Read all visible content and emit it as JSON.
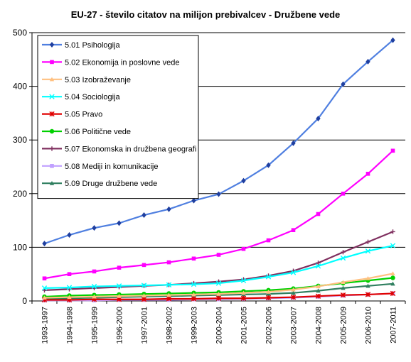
{
  "chart_data": {
    "type": "line",
    "title": "EU-27 - število citatov na milijon prebivalcev - Družbene vede",
    "xlabel": "",
    "ylabel": "",
    "ylim": [
      0,
      500
    ],
    "yticks": [
      0,
      100,
      200,
      300,
      400,
      500
    ],
    "grid": true,
    "legend_position": "top-left",
    "categories": [
      "1993-1997",
      "1994-1998",
      "1995-1999",
      "1996-2000",
      "1997-2001",
      "1998-2002",
      "1999-2003",
      "2000-2004",
      "2001-2005",
      "2002-2006",
      "2003-2007",
      "2004-2008",
      "2005-2009",
      "2006-2010",
      "2007-2011"
    ],
    "series": [
      {
        "name": "5.01 Psihologija",
        "color": "#1F3F9F",
        "line_color": "#4F7FE0",
        "marker": "diamond",
        "values": [
          107,
          123,
          136,
          145,
          160,
          171,
          187,
          199,
          224,
          253,
          294,
          340,
          404,
          446,
          486
        ]
      },
      {
        "name": "5.02 Ekonomija in poslovne vede",
        "color": "#FF00FF",
        "line_color": "#FF00FF",
        "marker": "square",
        "values": [
          42,
          50,
          55,
          62,
          67,
          72,
          79,
          86,
          97,
          113,
          132,
          162,
          200,
          237,
          280
        ]
      },
      {
        "name": "5.03 Izobraževanje",
        "color": "#FFC080",
        "line_color": "#FFC080",
        "marker": "triangle",
        "values": [
          6,
          7,
          8,
          9,
          10,
          11,
          12,
          13,
          15,
          17,
          21,
          27,
          35,
          42,
          51
        ]
      },
      {
        "name": "5.04 Sociologija",
        "color": "#00FFFF",
        "line_color": "#00FFFF",
        "marker": "x",
        "values": [
          24,
          25,
          27,
          28,
          29,
          30,
          31,
          33,
          38,
          45,
          53,
          65,
          80,
          93,
          103
        ]
      },
      {
        "name": "5.05 Pravo",
        "color": "#E00000",
        "line_color": "#E00000",
        "marker": "star",
        "values": [
          2,
          2,
          3,
          3,
          3,
          4,
          4,
          5,
          5,
          6,
          7,
          9,
          11,
          12,
          14
        ]
      },
      {
        "name": "5.06 Politične vede",
        "color": "#00D000",
        "line_color": "#00D000",
        "marker": "circle",
        "values": [
          8,
          10,
          11,
          12,
          13,
          14,
          15,
          16,
          18,
          20,
          23,
          28,
          33,
          38,
          43
        ]
      },
      {
        "name": "5.07 Ekonomska in družbena geografi",
        "color": "#7F2F5F",
        "line_color": "#7F2F5F",
        "marker": "plus",
        "values": [
          20,
          22,
          24,
          26,
          28,
          30,
          33,
          36,
          40,
          47,
          56,
          71,
          91,
          110,
          129
        ]
      },
      {
        "name": "5.08 Mediji in komunikacije",
        "color": "#C0A0FF",
        "line_color": "#C0A0FF",
        "marker": "square",
        "values": [
          1,
          1,
          1,
          2,
          2,
          2,
          3,
          3,
          4,
          5,
          6,
          8,
          10,
          12,
          14
        ]
      },
      {
        "name": "5.09 Druge družbene vede",
        "color": "#2F7F5F",
        "line_color": "#2F7F5F",
        "marker": "triangle",
        "values": [
          4,
          5,
          6,
          7,
          8,
          9,
          10,
          11,
          12,
          13,
          15,
          19,
          24,
          28,
          32
        ]
      }
    ]
  }
}
